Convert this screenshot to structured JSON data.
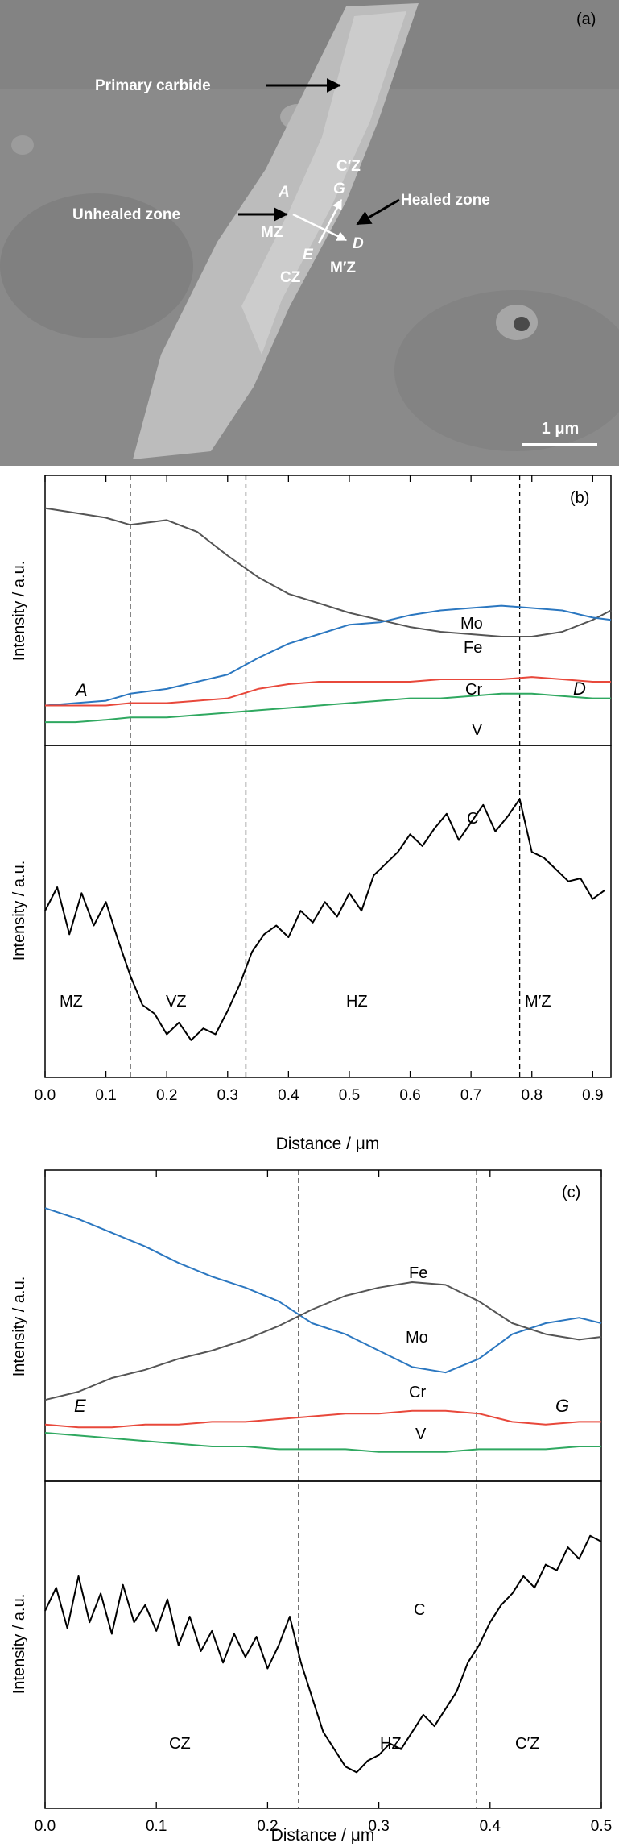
{
  "sem": {
    "panel_label": "(a)",
    "labels": {
      "primary_carbide": "Primary carbide",
      "unhealed_zone": "Unhealed zone",
      "healed_zone": "Healed zone",
      "czp": "C′Z",
      "g": "G",
      "a": "A",
      "mz": "MZ",
      "e": "E",
      "d": "D",
      "mpz": "M′Z",
      "cz": "CZ"
    },
    "scale_bar": "1 μm"
  },
  "chart_data": [
    {
      "type": "line",
      "panel": "(b)",
      "xlabel": "Distance / μm",
      "ylabel": "Intensity / a.u.",
      "xlim": [
        0,
        0.93
      ],
      "x_ticks": [
        "0.0",
        "0.1",
        "0.2",
        "0.3",
        "0.4",
        "0.5",
        "0.6",
        "0.7",
        "0.8",
        "0.9"
      ],
      "x_tick_values": [
        0,
        0.1,
        0.2,
        0.3,
        0.4,
        0.5,
        0.6,
        0.7,
        0.8,
        0.9
      ],
      "boundaries": [
        0.14,
        0.33,
        0.78
      ],
      "colors": {
        "Fe": "#555555",
        "Mo": "#2b77c0",
        "Cr": "#e8483b",
        "V": "#2fa860",
        "C": "#000000"
      },
      "upper": {
        "ylim": [
          0,
          1
        ],
        "text": {
          "mo": "Mo",
          "fe": "Fe",
          "cr": "Cr",
          "v": "V",
          "a": "A",
          "d": "D"
        },
        "series": [
          {
            "key": "Fe",
            "x": [
              0,
              0.05,
              0.1,
              0.14,
              0.2,
              0.25,
              0.3,
              0.35,
              0.4,
              0.45,
              0.5,
              0.55,
              0.6,
              0.65,
              0.7,
              0.75,
              0.8,
              0.85,
              0.9,
              0.93
            ],
            "values": [
              0.93,
              0.91,
              0.89,
              0.86,
              0.88,
              0.83,
              0.73,
              0.64,
              0.57,
              0.53,
              0.49,
              0.46,
              0.43,
              0.41,
              0.4,
              0.39,
              0.39,
              0.41,
              0.46,
              0.5
            ]
          },
          {
            "key": "Mo",
            "x": [
              0,
              0.05,
              0.1,
              0.14,
              0.2,
              0.25,
              0.3,
              0.35,
              0.4,
              0.45,
              0.5,
              0.55,
              0.6,
              0.65,
              0.7,
              0.75,
              0.8,
              0.85,
              0.9,
              0.93
            ],
            "values": [
              0.1,
              0.11,
              0.12,
              0.15,
              0.17,
              0.2,
              0.23,
              0.3,
              0.36,
              0.4,
              0.44,
              0.45,
              0.48,
              0.5,
              0.51,
              0.52,
              0.51,
              0.5,
              0.47,
              0.46
            ]
          },
          {
            "key": "Cr",
            "x": [
              0,
              0.05,
              0.1,
              0.14,
              0.2,
              0.25,
              0.3,
              0.35,
              0.4,
              0.45,
              0.5,
              0.55,
              0.6,
              0.65,
              0.7,
              0.75,
              0.8,
              0.85,
              0.9,
              0.93
            ],
            "values": [
              0.1,
              0.1,
              0.1,
              0.11,
              0.11,
              0.12,
              0.13,
              0.17,
              0.19,
              0.2,
              0.2,
              0.2,
              0.2,
              0.21,
              0.21,
              0.21,
              0.22,
              0.21,
              0.2,
              0.2
            ]
          },
          {
            "key": "V",
            "x": [
              0,
              0.05,
              0.1,
              0.14,
              0.2,
              0.25,
              0.3,
              0.35,
              0.4,
              0.45,
              0.5,
              0.55,
              0.6,
              0.65,
              0.7,
              0.75,
              0.8,
              0.85,
              0.9,
              0.93
            ],
            "values": [
              0.03,
              0.03,
              0.04,
              0.05,
              0.05,
              0.06,
              0.07,
              0.08,
              0.09,
              0.1,
              0.11,
              0.12,
              0.13,
              0.13,
              0.14,
              0.15,
              0.15,
              0.14,
              0.13,
              0.13
            ]
          }
        ]
      },
      "lower": {
        "ylim": [
          0,
          1
        ],
        "text": {
          "c": "C",
          "mz": "MZ",
          "vz": "VZ",
          "hz": "HZ",
          "mpz": "M′Z"
        },
        "series": [
          {
            "key": "C",
            "x": [
              0,
              0.02,
              0.04,
              0.06,
              0.08,
              0.1,
              0.12,
              0.14,
              0.16,
              0.18,
              0.2,
              0.22,
              0.24,
              0.26,
              0.28,
              0.3,
              0.32,
              0.34,
              0.36,
              0.38,
              0.4,
              0.42,
              0.44,
              0.46,
              0.48,
              0.5,
              0.52,
              0.54,
              0.56,
              0.58,
              0.6,
              0.62,
              0.64,
              0.66,
              0.68,
              0.7,
              0.72,
              0.74,
              0.76,
              0.78,
              0.8,
              0.82,
              0.84,
              0.86,
              0.88,
              0.9,
              0.92
            ],
            "values": [
              0.52,
              0.6,
              0.44,
              0.58,
              0.47,
              0.55,
              0.42,
              0.3,
              0.2,
              0.17,
              0.1,
              0.14,
              0.08,
              0.12,
              0.1,
              0.18,
              0.27,
              0.38,
              0.44,
              0.47,
              0.43,
              0.52,
              0.48,
              0.55,
              0.5,
              0.58,
              0.52,
              0.64,
              0.68,
              0.72,
              0.78,
              0.74,
              0.8,
              0.85,
              0.76,
              0.82,
              0.88,
              0.79,
              0.84,
              0.9,
              0.72,
              0.7,
              0.66,
              0.62,
              0.63,
              0.56,
              0.59
            ]
          }
        ]
      }
    },
    {
      "type": "line",
      "panel": "(c)",
      "xlabel": "Distance / μm",
      "ylabel": "Intensity / a.u.",
      "xlim": [
        0,
        0.5
      ],
      "x_ticks": [
        "0.0",
        "0.1",
        "0.2",
        "0.3",
        "0.4",
        "0.5"
      ],
      "x_tick_values": [
        0,
        0.1,
        0.2,
        0.3,
        0.4,
        0.5
      ],
      "boundaries": [
        0.228,
        0.388
      ],
      "colors": {
        "Fe": "#555555",
        "Mo": "#2b77c0",
        "Cr": "#e8483b",
        "V": "#2fa860",
        "C": "#000000"
      },
      "upper": {
        "ylim": [
          0,
          1
        ],
        "text": {
          "fe": "Fe",
          "mo": "Mo",
          "cr": "Cr",
          "v": "V",
          "e": "E",
          "g": "G"
        },
        "series": [
          {
            "key": "Mo",
            "x": [
              0,
              0.03,
              0.06,
              0.09,
              0.12,
              0.15,
              0.18,
              0.21,
              0.24,
              0.27,
              0.3,
              0.33,
              0.36,
              0.39,
              0.42,
              0.45,
              0.48,
              0.5
            ],
            "values": [
              0.92,
              0.88,
              0.83,
              0.78,
              0.72,
              0.67,
              0.63,
              0.58,
              0.5,
              0.46,
              0.4,
              0.34,
              0.32,
              0.37,
              0.46,
              0.5,
              0.52,
              0.5
            ]
          },
          {
            "key": "Fe",
            "x": [
              0,
              0.03,
              0.06,
              0.09,
              0.12,
              0.15,
              0.18,
              0.21,
              0.24,
              0.27,
              0.3,
              0.33,
              0.36,
              0.39,
              0.42,
              0.45,
              0.48,
              0.5
            ],
            "values": [
              0.22,
              0.25,
              0.3,
              0.33,
              0.37,
              0.4,
              0.44,
              0.49,
              0.55,
              0.6,
              0.63,
              0.65,
              0.64,
              0.58,
              0.5,
              0.46,
              0.44,
              0.45
            ]
          },
          {
            "key": "Cr",
            "x": [
              0,
              0.03,
              0.06,
              0.09,
              0.12,
              0.15,
              0.18,
              0.21,
              0.24,
              0.27,
              0.3,
              0.33,
              0.36,
              0.39,
              0.42,
              0.45,
              0.48,
              0.5
            ],
            "values": [
              0.13,
              0.12,
              0.12,
              0.13,
              0.13,
              0.14,
              0.14,
              0.15,
              0.16,
              0.17,
              0.17,
              0.18,
              0.18,
              0.17,
              0.14,
              0.13,
              0.14,
              0.14
            ]
          },
          {
            "key": "V",
            "x": [
              0,
              0.03,
              0.06,
              0.09,
              0.12,
              0.15,
              0.18,
              0.21,
              0.24,
              0.27,
              0.3,
              0.33,
              0.36,
              0.39,
              0.42,
              0.45,
              0.48,
              0.5
            ],
            "values": [
              0.1,
              0.09,
              0.08,
              0.07,
              0.06,
              0.05,
              0.05,
              0.04,
              0.04,
              0.04,
              0.03,
              0.03,
              0.03,
              0.04,
              0.04,
              0.04,
              0.05,
              0.05
            ]
          }
        ]
      },
      "lower": {
        "ylim": [
          0,
          1
        ],
        "text": {
          "c": "C",
          "cz": "CZ",
          "hz": "HZ",
          "czp": "C′Z"
        },
        "series": [
          {
            "key": "C",
            "x": [
              0,
              0.01,
              0.02,
              0.03,
              0.04,
              0.05,
              0.06,
              0.07,
              0.08,
              0.09,
              0.1,
              0.11,
              0.12,
              0.13,
              0.14,
              0.15,
              0.16,
              0.17,
              0.18,
              0.19,
              0.2,
              0.21,
              0.22,
              0.23,
              0.24,
              0.25,
              0.26,
              0.27,
              0.28,
              0.29,
              0.3,
              0.31,
              0.32,
              0.33,
              0.34,
              0.35,
              0.36,
              0.37,
              0.38,
              0.39,
              0.4,
              0.41,
              0.42,
              0.43,
              0.44,
              0.45,
              0.46,
              0.47,
              0.48,
              0.49,
              0.5
            ],
            "values": [
              0.64,
              0.72,
              0.58,
              0.76,
              0.6,
              0.7,
              0.56,
              0.73,
              0.6,
              0.66,
              0.57,
              0.68,
              0.52,
              0.62,
              0.5,
              0.57,
              0.46,
              0.56,
              0.48,
              0.55,
              0.44,
              0.52,
              0.62,
              0.46,
              0.34,
              0.22,
              0.16,
              0.1,
              0.08,
              0.12,
              0.14,
              0.18,
              0.16,
              0.22,
              0.28,
              0.24,
              0.3,
              0.36,
              0.46,
              0.52,
              0.6,
              0.66,
              0.7,
              0.76,
              0.72,
              0.8,
              0.78,
              0.86,
              0.82,
              0.9,
              0.88
            ]
          }
        ]
      }
    }
  ]
}
